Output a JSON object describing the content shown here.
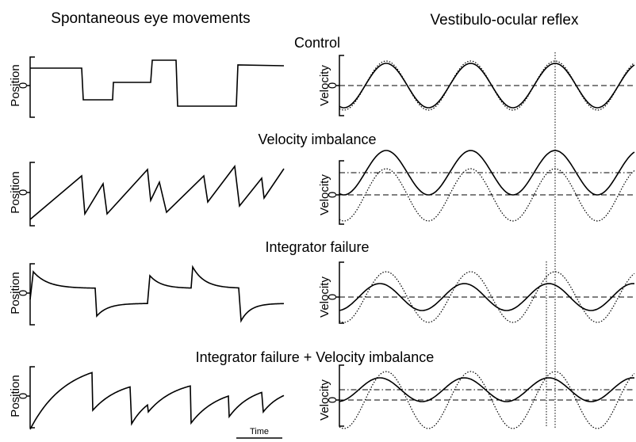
{
  "headers": {
    "left": "Spontaneous eye movements",
    "right": "Vestibulo-ocular reflex"
  },
  "rows": [
    {
      "title": "Control",
      "position": {
        "label": "Position",
        "zero": "0"
      },
      "velocity": {
        "label": "Velocity",
        "zero": "0"
      }
    },
    {
      "title": "Velocity imbalance",
      "position": {
        "label": "Position",
        "zero": "0"
      },
      "velocity": {
        "label": "Velocity",
        "zero": "0"
      }
    },
    {
      "title": "Integrator failure",
      "position": {
        "label": "Position",
        "zero": "0"
      },
      "velocity": {
        "label": "Velocity",
        "zero": "0"
      }
    },
    {
      "title": "Integrator failure + Velocity imbalance",
      "position": {
        "label": "Position",
        "zero": "0"
      },
      "velocity": {
        "label": "Velocity",
        "zero": "0"
      }
    }
  ],
  "time_label": "Time"
}
